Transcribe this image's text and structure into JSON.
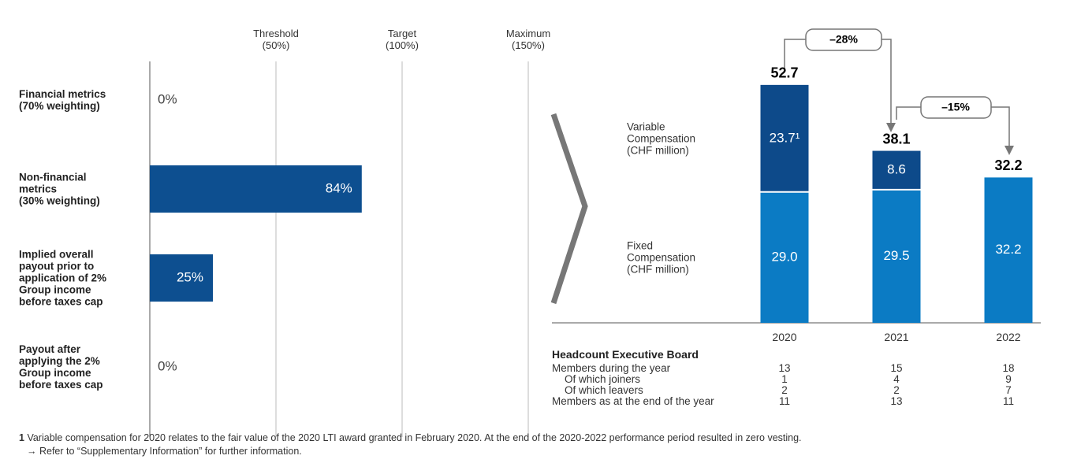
{
  "chart_data": [
    {
      "type": "hbar",
      "categories": [
        "Financial metrics\n(70% weighting)",
        "Non-financial\nmetrics\n(30% weighting)",
        "Implied overall\npayout prior to\napplication of 2%\nGroup income\nbefore taxes cap",
        "Payout after\napplying the 2%\nGroup income\nbefore taxes cap"
      ],
      "values": [
        0,
        84,
        25,
        0
      ],
      "value_labels": [
        "0%",
        "84%",
        "25%",
        "0%"
      ],
      "color": "#0d4f90",
      "xlim": [
        0,
        150
      ],
      "xticks": [
        {
          "value": 50,
          "label": "Threshold\n(50%)"
        },
        {
          "value": 100,
          "label": "Target\n(100%)"
        },
        {
          "value": 150,
          "label": "Maximum\n(150%)"
        }
      ],
      "grid": true
    },
    {
      "type": "stacked_bar",
      "categories": [
        "2020",
        "2021",
        "2022"
      ],
      "series": [
        {
          "name": "Fixed\nCompensation\n(CHF million)",
          "color": "#0b7bc4",
          "values": [
            29.0,
            29.5,
            32.2
          ],
          "value_labels": [
            "29.0",
            "29.5",
            "32.2"
          ]
        },
        {
          "name": "Variable\nCompensation\n(CHF million)",
          "color": "#0d4a8a",
          "values": [
            23.7,
            8.6,
            null
          ],
          "value_labels": [
            "23.7¹",
            "8.6",
            null
          ]
        }
      ],
      "total_labels": [
        "52.7",
        "38.1",
        "32.2"
      ],
      "ylim": [
        0,
        60
      ]
    }
  ],
  "annotations": [
    "–28%",
    "–15%"
  ],
  "table": {
    "title": "Headcount Executive Board",
    "rows": [
      {
        "label": "Members during the year",
        "values": [
          "13",
          "15",
          "18"
        ]
      },
      {
        "label": "Of which joiners",
        "values": [
          "1",
          "4",
          "9"
        ]
      },
      {
        "label": "Of which leavers",
        "values": [
          "2",
          "2",
          "7"
        ]
      },
      {
        "label": "Members as at the end of the year",
        "values": [
          "11",
          "13",
          "11"
        ]
      }
    ]
  },
  "footnote": {
    "mark": "1",
    "text": "Variable compensation for 2020 relates to the fair value of the 2020 LTI award granted in February 2020. At the end of the 2020-2022 performance period resulted in zero vesting.",
    "reference": "→ Refer to “Supplementary Information” for further information."
  }
}
